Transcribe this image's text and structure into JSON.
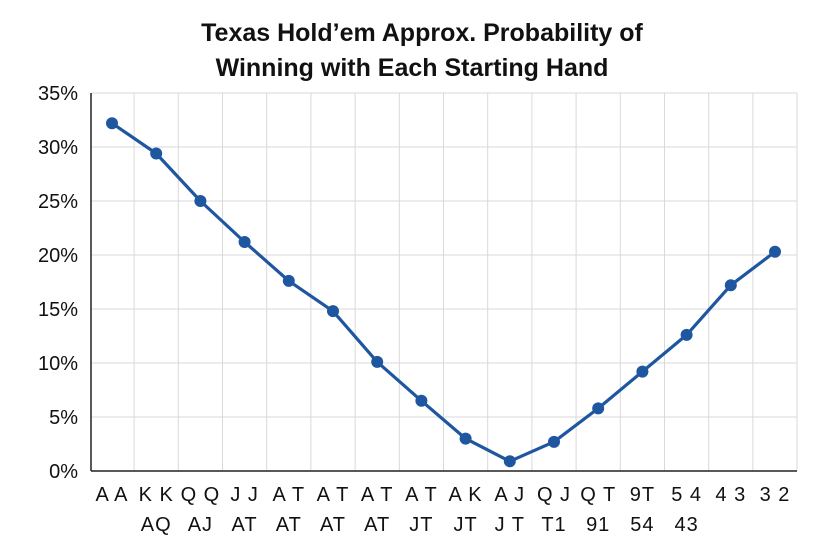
{
  "chart_data": {
    "type": "line",
    "title_lines": [
      "Texas Hold’em Approx. Probability of",
      "Winning with Each Starting Hand"
    ],
    "categories": [
      [
        "A A",
        ""
      ],
      [
        "K K",
        "AQ"
      ],
      [
        "Q Q",
        "AJ"
      ],
      [
        "J J",
        "AT"
      ],
      [
        "A T",
        "AT"
      ],
      [
        "A T",
        "AT"
      ],
      [
        "A T",
        "AT"
      ],
      [
        "A T",
        "JT"
      ],
      [
        "A K",
        "JT"
      ],
      [
        "A J",
        "J T"
      ],
      [
        "Q J",
        "T1"
      ],
      [
        "Q T",
        "91"
      ],
      [
        "9T",
        "54"
      ],
      [
        "5 4",
        "43"
      ],
      [
        "4 3",
        ""
      ],
      [
        "3 2",
        ""
      ]
    ],
    "series": [
      {
        "values": [
          32.2,
          29.4,
          25.0,
          21.2,
          17.6,
          14.8,
          10.1,
          6.5,
          3.0,
          0.9,
          2.7,
          5.8,
          9.2,
          12.6,
          17.2,
          20.3
        ]
      }
    ],
    "y_ticks": [
      "0%",
      "5%",
      "10%",
      "15%",
      "20%",
      "25%",
      "30%",
      "35%"
    ],
    "ylim": [
      0,
      35
    ],
    "grid": true,
    "colors": {
      "line": "#1f56a0",
      "grid": "#d9d9d9",
      "axis": "#222222"
    }
  }
}
